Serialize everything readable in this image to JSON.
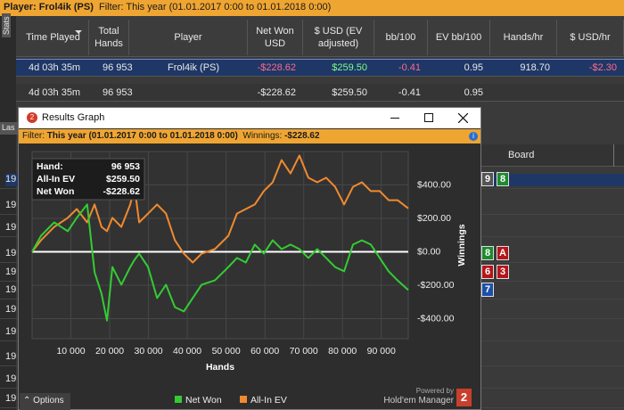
{
  "player_bar": {
    "player": "Player: Frol4ik (PS)",
    "filter": "Filter: This year (01.01.2017 0:00 to 01.01.2018 0:00)"
  },
  "side_tab": "Stats",
  "table": {
    "columns": [
      "Time Played",
      "Total Hands",
      "Player",
      "Net Won USD",
      "$ USD (EV adjusted)",
      "bb/100",
      "EV bb/100",
      "Hands/hr",
      "$ USD/hr"
    ],
    "rows": [
      [
        "4d 03h 35m",
        "96 953",
        "Frol4ik (PS)",
        "-$228.62",
        "$259.50",
        "-0.41",
        "0.95",
        "918.70",
        "-$2.30"
      ],
      [
        "4d 03h 35m",
        "96 953",
        null,
        "-$228.62",
        "$259.50",
        "-0.41",
        "0.95",
        null,
        null
      ]
    ]
  },
  "background": {
    "tab": "Las",
    "board_header": "Board",
    "left_cells": [
      "19",
      "19",
      "19",
      "19",
      "19",
      "19",
      "19",
      "19",
      "19",
      "19",
      "19"
    ],
    "cards": [
      {
        "rank": "9",
        "color": "#555555"
      },
      {
        "rank": "8",
        "color": "#1f8a2e"
      },
      {
        "rank": "8",
        "color": "#1f8a2e"
      },
      {
        "rank": "A",
        "color": "#b3161b"
      },
      {
        "rank": "6",
        "color": "#b3161b"
      },
      {
        "rank": "3",
        "color": "#b3161b"
      },
      {
        "rank": "7",
        "color": "#1d4fa8"
      }
    ]
  },
  "window": {
    "title": "Results Graph",
    "filter_label": "Filter:",
    "filter": "This year (01.01.2017 0:00 to 01.01.2018 0:00)",
    "winnings_label": "Winnings:",
    "winnings": "-$228.62",
    "info": [
      {
        "label": "Hand:",
        "value": "96 953"
      },
      {
        "label": "All-In EV",
        "value": "$259.50"
      },
      {
        "label": "Net Won",
        "value": "-$228.62"
      }
    ],
    "options": "Options",
    "powered_by": "Powered by",
    "brand": "Hold'em Manager",
    "brand_mark": "2"
  },
  "chart_data": {
    "type": "line",
    "xlabel": "Hands",
    "ylabel": "Winnings",
    "x": [
      0,
      2300,
      5700,
      9200,
      11500,
      14200,
      16100,
      17900,
      19300,
      20700,
      23000,
      25300,
      26400,
      27600,
      29900,
      32200,
      34500,
      36800,
      39100,
      41400,
      43700,
      47100,
      50600,
      52800,
      55100,
      57400,
      59700,
      62000,
      64300,
      66600,
      68900,
      71200,
      73500,
      75800,
      78100,
      80400,
      82700,
      85000,
      87300,
      89600,
      91900,
      94200,
      96953
    ],
    "series": [
      {
        "name": "Net Won",
        "color": "#33cc33",
        "values": [
          0,
          96,
          176,
          123,
          203,
          283,
          -123,
          -251,
          -411,
          -91,
          -197,
          -91,
          -48,
          -11,
          -91,
          -277,
          -197,
          -331,
          -357,
          -277,
          -197,
          -171,
          -91,
          -37,
          -64,
          43,
          -11,
          69,
          16,
          43,
          16,
          -37,
          16,
          -37,
          -91,
          -117,
          43,
          69,
          43,
          -37,
          -117,
          -171,
          -228.62
        ]
      },
      {
        "name": "All-In EV",
        "color": "#f08a30",
        "values": [
          0,
          69,
          149,
          203,
          256,
          176,
          283,
          149,
          123,
          203,
          149,
          283,
          389,
          176,
          229,
          283,
          229,
          69,
          -11,
          -64,
          -11,
          16,
          96,
          229,
          256,
          283,
          363,
          416,
          549,
          469,
          576,
          443,
          416,
          443,
          389,
          283,
          389,
          416,
          363,
          363,
          309,
          309,
          259.5
        ]
      }
    ],
    "xlim": [
      0,
      96953
    ],
    "ylim": [
      -520,
      600
    ],
    "xticks": [
      {
        "value": 10000,
        "label": "10 000"
      },
      {
        "value": 20000,
        "label": "20 000"
      },
      {
        "value": 30000,
        "label": "30 000"
      },
      {
        "value": 40000,
        "label": "40 000"
      },
      {
        "value": 50000,
        "label": "50 000"
      },
      {
        "value": 60000,
        "label": "60 000"
      },
      {
        "value": 70000,
        "label": "70 000"
      },
      {
        "value": 80000,
        "label": "80 000"
      },
      {
        "value": 90000,
        "label": "90 000"
      }
    ],
    "yticks": [
      {
        "value": -400,
        "label": "-$400.00"
      },
      {
        "value": -200,
        "label": "-$200.00"
      },
      {
        "value": 0,
        "label": "$0.00"
      },
      {
        "value": 200,
        "label": "$200.00"
      },
      {
        "value": 400,
        "label": "$400.00"
      }
    ],
    "grid": true,
    "zero_line": 0
  }
}
